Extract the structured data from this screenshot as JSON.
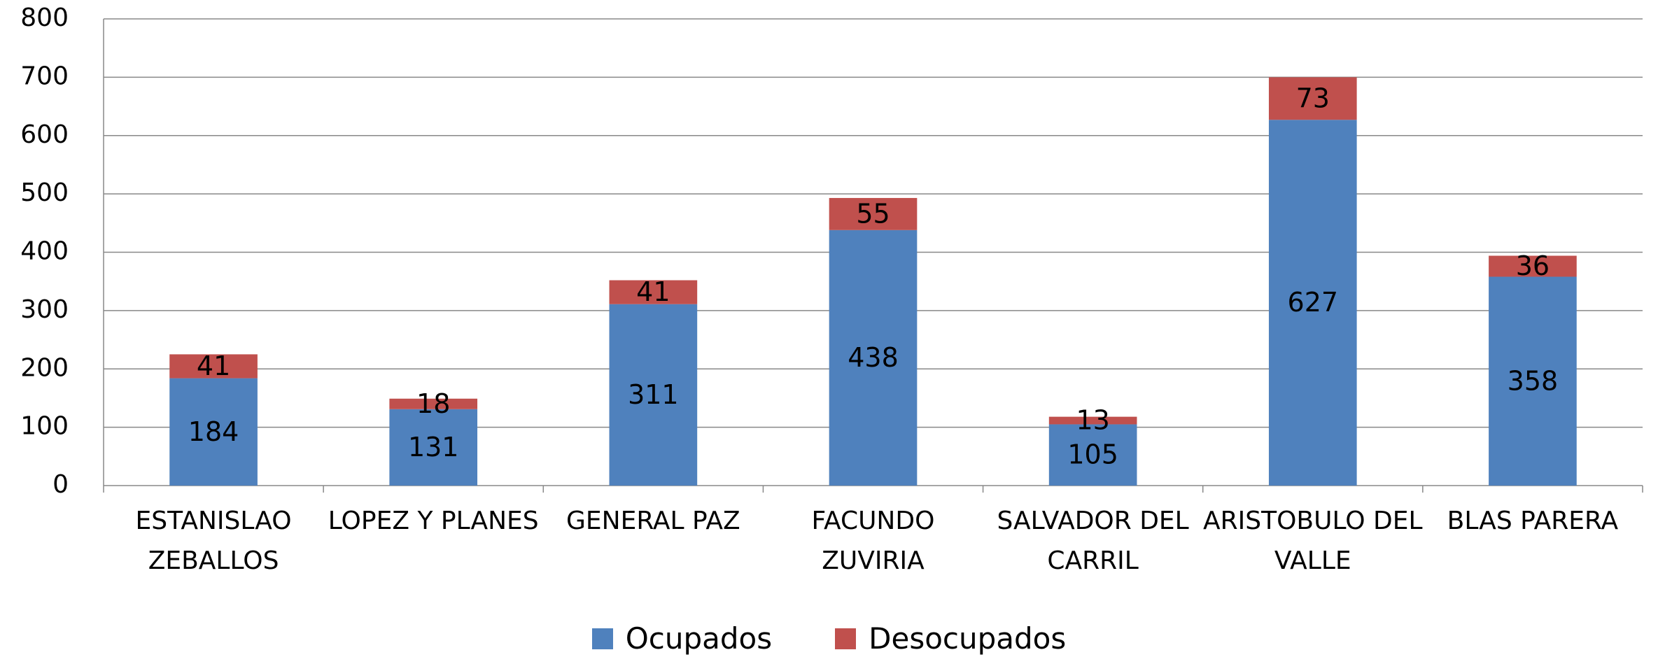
{
  "chart_data": {
    "type": "stacked_bar",
    "categories": [
      "ESTANISLAO ZEBALLOS",
      "LOPEZ Y PLANES",
      "GENERAL PAZ",
      "FACUNDO ZUVIRIA",
      "SALVADOR DEL CARRIL",
      "ARISTOBULO DEL VALLE",
      "BLAS PARERA"
    ],
    "series": [
      {
        "name": "Ocupados",
        "color": "#4f81bd",
        "values": [
          184,
          131,
          311,
          438,
          105,
          627,
          358
        ]
      },
      {
        "name": "Desocupados",
        "color": "#c0504d",
        "values": [
          41,
          18,
          41,
          55,
          13,
          73,
          36
        ]
      }
    ],
    "ylim": [
      0,
      800
    ],
    "yticks": [
      0,
      100,
      200,
      300,
      400,
      500,
      600,
      700,
      800
    ],
    "grid": true,
    "legend": "bottom"
  }
}
